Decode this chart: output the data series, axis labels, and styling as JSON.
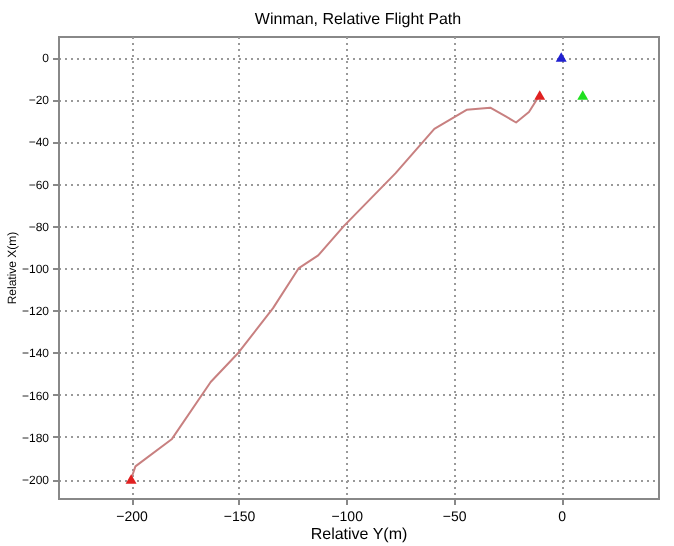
{
  "chart_data": {
    "type": "line",
    "title": "Winman, Relative Flight Path",
    "xlabel": "Relative Y(m)",
    "ylabel": "Relative X(m)",
    "xlim": [
      -234,
      45
    ],
    "ylim": [
      -209,
      10
    ],
    "xticks": [
      -200,
      -150,
      -100,
      -50,
      0
    ],
    "yticks": [
      0,
      -20,
      -40,
      -60,
      -80,
      -100,
      -120,
      -140,
      -160,
      -180,
      -200
    ],
    "grid": true,
    "series": [
      {
        "color": "#c88080",
        "marker": "none",
        "x": [
          -200,
          -198,
          -181,
          -163,
          -150,
          -134,
          -122,
          -113,
          -101,
          -77,
          -59,
          -44,
          -33,
          -26,
          -21,
          -15,
          -10
        ],
        "values": [
          -200,
          -194,
          -181,
          -154,
          -140,
          -119,
          -100,
          -94,
          -80,
          -55,
          -34,
          -25,
          -24,
          -28,
          -31,
          -26,
          -18
        ]
      },
      {
        "type": "scatter",
        "marker": "triangle",
        "colors": [
          "#e02020",
          "#e02020",
          "#2020d0",
          "#20e020"
        ],
        "x": [
          -200,
          -10,
          0,
          10
        ],
        "values": [
          -200,
          -18,
          0,
          -18
        ]
      }
    ]
  }
}
